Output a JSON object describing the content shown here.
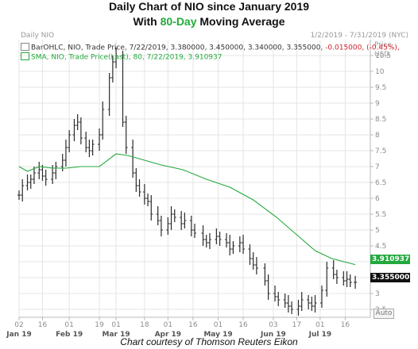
{
  "title_line1": "Daily Chart of NIO since January 2019",
  "title_line2_pre": "With ",
  "title_line2_highlight": "80-Day",
  "title_line2_post": " Moving Average",
  "caption": "Chart courtesy of Thomson Reuters Eikon",
  "panel_label": "Daily NIO",
  "date_range": "1/2/2019 - 7/31/2019 (NYC)",
  "unit_label_1": "Price",
  "unit_label_2": "USD",
  "auto_button": "Auto",
  "legend": {
    "ohlc_prefix": "BarOHLC, NIO, Trade Price, 7/22/2019, 3.380000, 3.450000, 3.340000, 3.355000, ",
    "ohlc_change": "-0.015000, (-0.45%),",
    "sma": "SMA, NIO, Trade Price(Last), 80, 7/22/2019, 3.910937"
  },
  "tags": {
    "sma_value": "3.910937",
    "last_price": "3.355000"
  },
  "colors": {
    "price": "#2b2b2b",
    "sma": "#22a93c",
    "grid": "#e5e5e5",
    "axis_text": "#8c8c8c",
    "highlight": "#22a93c",
    "negative": "#d0202a"
  },
  "chart_data": {
    "type": "line",
    "y_axis": {
      "range": [
        2.25,
        11
      ],
      "ticks": [
        2.5,
        3,
        3.5,
        4,
        4.5,
        5,
        5.5,
        6,
        6.5,
        7,
        7.5,
        8,
        8.5,
        9,
        9.5,
        10,
        10.5
      ],
      "tick_labels": [
        "2.5",
        "3",
        "3.5",
        "4",
        "4.5",
        "5",
        "5.5",
        "6",
        "6.5",
        "7",
        "7.5",
        "8",
        "8.5",
        "9",
        "9.5",
        "10",
        "10.5"
      ]
    },
    "x_axis": {
      "range": [
        "2019-01-02",
        "2019-07-31"
      ],
      "ticks": [
        {
          "date": "2019-01-02",
          "day": "02",
          "month": "Jan 19"
        },
        {
          "date": "2019-01-16",
          "day": "16",
          "month": ""
        },
        {
          "date": "2019-02-01",
          "day": "01",
          "month": "Feb 19"
        },
        {
          "date": "2019-02-19",
          "day": "19",
          "month": ""
        },
        {
          "date": "2019-03-01",
          "day": "01",
          "month": "Mar 19"
        },
        {
          "date": "2019-03-18",
          "day": "18",
          "month": ""
        },
        {
          "date": "2019-04-01",
          "day": "01",
          "month": "Apr 19"
        },
        {
          "date": "2019-04-16",
          "day": "16",
          "month": ""
        },
        {
          "date": "2019-05-01",
          "day": "01",
          "month": "May 19"
        },
        {
          "date": "2019-05-16",
          "day": "16",
          "month": ""
        },
        {
          "date": "2019-06-03",
          "day": "03",
          "month": "Jun 19"
        },
        {
          "date": "2019-06-17",
          "day": "17",
          "month": ""
        },
        {
          "date": "2019-07-01",
          "day": "01",
          "month": "Jul 19"
        },
        {
          "date": "2019-07-16",
          "day": "16",
          "month": ""
        }
      ]
    },
    "grid": true,
    "series": [
      {
        "name": "BarOHLC, NIO, Trade Price",
        "kind": "ohlc_close",
        "points": [
          [
            "2019-01-02",
            6.1
          ],
          [
            "2019-01-04",
            6.4
          ],
          [
            "2019-01-07",
            6.5
          ],
          [
            "2019-01-09",
            6.6
          ],
          [
            "2019-01-11",
            6.8
          ],
          [
            "2019-01-14",
            6.9
          ],
          [
            "2019-01-16",
            6.7
          ],
          [
            "2019-01-18",
            6.6
          ],
          [
            "2019-01-22",
            6.8
          ],
          [
            "2019-01-24",
            7.0
          ],
          [
            "2019-01-28",
            7.2
          ],
          [
            "2019-01-30",
            7.6
          ],
          [
            "2019-02-01",
            8.0
          ],
          [
            "2019-02-04",
            8.3
          ],
          [
            "2019-02-06",
            8.4
          ],
          [
            "2019-02-08",
            7.9
          ],
          [
            "2019-02-11",
            7.6
          ],
          [
            "2019-02-13",
            7.5
          ],
          [
            "2019-02-15",
            7.7
          ],
          [
            "2019-02-19",
            8.0
          ],
          [
            "2019-02-21",
            8.8
          ],
          [
            "2019-02-25",
            9.8
          ],
          [
            "2019-02-27",
            10.3
          ],
          [
            "2019-03-01",
            10.5
          ],
          [
            "2019-03-05",
            8.4
          ],
          [
            "2019-03-07",
            7.6
          ],
          [
            "2019-03-11",
            6.8
          ],
          [
            "2019-03-13",
            6.4
          ],
          [
            "2019-03-15",
            6.2
          ],
          [
            "2019-03-18",
            6.0
          ],
          [
            "2019-03-20",
            5.9
          ],
          [
            "2019-03-22",
            5.5
          ],
          [
            "2019-03-26",
            5.3
          ],
          [
            "2019-03-28",
            5.0
          ],
          [
            "2019-04-01",
            5.2
          ],
          [
            "2019-04-03",
            5.5
          ],
          [
            "2019-04-05",
            5.4
          ],
          [
            "2019-04-09",
            5.2
          ],
          [
            "2019-04-11",
            5.3
          ],
          [
            "2019-04-15",
            5.0
          ],
          [
            "2019-04-17",
            4.9
          ],
          [
            "2019-04-22",
            4.7
          ],
          [
            "2019-04-24",
            4.6
          ],
          [
            "2019-04-26",
            4.7
          ],
          [
            "2019-04-30",
            4.8
          ],
          [
            "2019-05-02",
            4.7
          ],
          [
            "2019-05-06",
            4.6
          ],
          [
            "2019-05-08",
            4.4
          ],
          [
            "2019-05-10",
            4.5
          ],
          [
            "2019-05-14",
            4.6
          ],
          [
            "2019-05-16",
            4.4
          ],
          [
            "2019-05-20",
            4.1
          ],
          [
            "2019-05-22",
            3.9
          ],
          [
            "2019-05-24",
            3.8
          ],
          [
            "2019-05-29",
            3.4
          ],
          [
            "2019-05-31",
            3.0
          ],
          [
            "2019-06-04",
            2.9
          ],
          [
            "2019-06-06",
            2.8
          ],
          [
            "2019-06-10",
            2.7
          ],
          [
            "2019-06-12",
            2.6
          ],
          [
            "2019-06-14",
            2.5
          ],
          [
            "2019-06-18",
            2.6
          ],
          [
            "2019-06-20",
            2.8
          ],
          [
            "2019-06-24",
            2.7
          ],
          [
            "2019-06-26",
            2.6
          ],
          [
            "2019-06-28",
            2.7
          ],
          [
            "2019-07-02",
            3.1
          ],
          [
            "2019-07-05",
            3.8
          ],
          [
            "2019-07-09",
            3.6
          ],
          [
            "2019-07-11",
            3.5
          ],
          [
            "2019-07-15",
            3.4
          ],
          [
            "2019-07-17",
            3.45
          ],
          [
            "2019-07-19",
            3.35
          ],
          [
            "2019-07-22",
            3.355
          ]
        ]
      },
      {
        "name": "SMA, NIO, Trade Price(Last), 80",
        "kind": "line",
        "points": [
          [
            "2019-01-02",
            7.0
          ],
          [
            "2019-01-07",
            6.85
          ],
          [
            "2019-01-14",
            7.0
          ],
          [
            "2019-01-22",
            6.95
          ],
          [
            "2019-01-30",
            6.95
          ],
          [
            "2019-02-08",
            7.0
          ],
          [
            "2019-02-19",
            7.0
          ],
          [
            "2019-03-01",
            7.4
          ],
          [
            "2019-03-08",
            7.35
          ],
          [
            "2019-03-18",
            7.2
          ],
          [
            "2019-03-28",
            7.05
          ],
          [
            "2019-04-10",
            6.9
          ],
          [
            "2019-04-24",
            6.6
          ],
          [
            "2019-05-08",
            6.35
          ],
          [
            "2019-05-22",
            5.95
          ],
          [
            "2019-06-05",
            5.4
          ],
          [
            "2019-06-17",
            4.85
          ],
          [
            "2019-06-28",
            4.35
          ],
          [
            "2019-07-08",
            4.1
          ],
          [
            "2019-07-22",
            3.91
          ]
        ]
      }
    ]
  }
}
